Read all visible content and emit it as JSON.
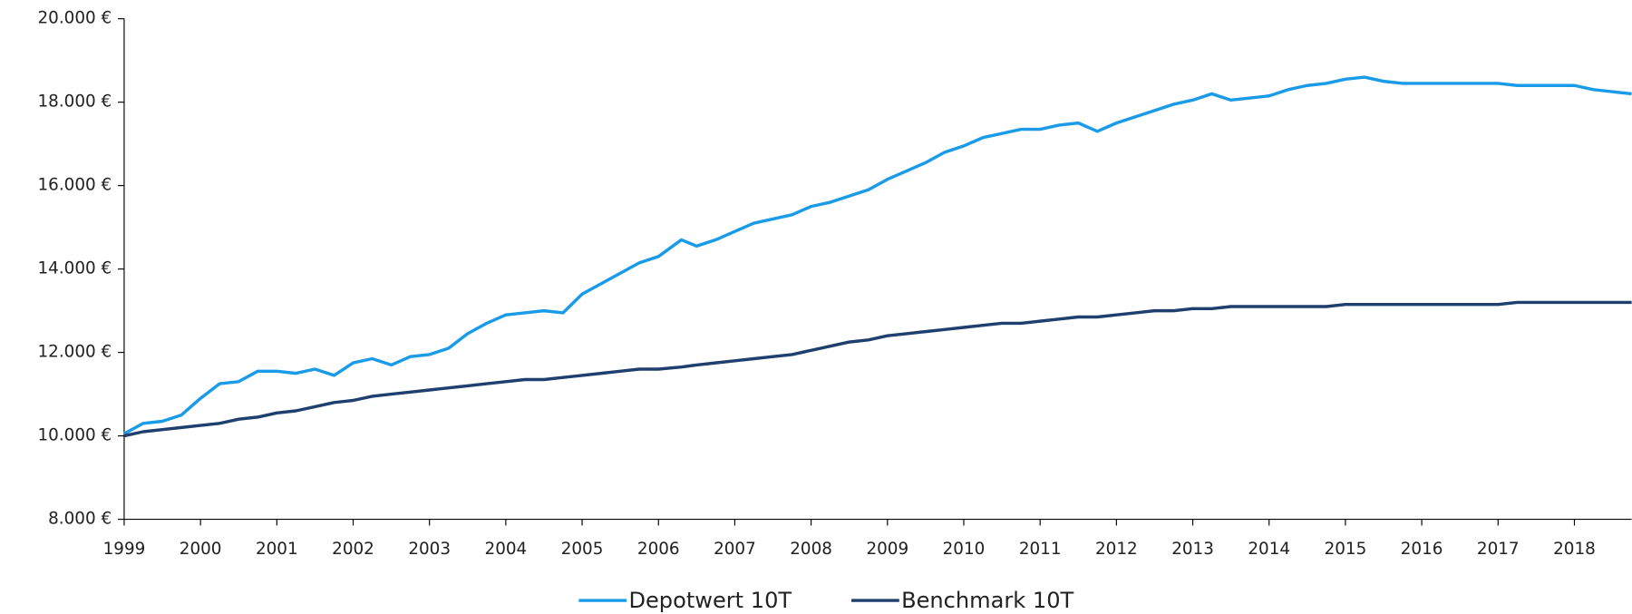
{
  "chart_data": {
    "type": "line",
    "x": [
      1999,
      1999.25,
      1999.5,
      1999.75,
      2000,
      2000.25,
      2000.5,
      2000.75,
      2001,
      2001.25,
      2001.5,
      2001.75,
      2002,
      2002.25,
      2002.5,
      2002.75,
      2003,
      2003.25,
      2003.5,
      2003.75,
      2004,
      2004.25,
      2004.5,
      2004.75,
      2005,
      2005.25,
      2005.5,
      2005.75,
      2006,
      2006.3,
      2006.5,
      2006.75,
      2007,
      2007.25,
      2007.5,
      2007.75,
      2008,
      2008.25,
      2008.5,
      2008.75,
      2009,
      2009.25,
      2009.5,
      2009.75,
      2010,
      2010.25,
      2010.5,
      2010.75,
      2011,
      2011.25,
      2011.5,
      2011.75,
      2012,
      2012.25,
      2012.5,
      2012.75,
      2013,
      2013.25,
      2013.5,
      2013.75,
      2014,
      2014.25,
      2014.5,
      2014.75,
      2015,
      2015.25,
      2015.5,
      2015.75,
      2016,
      2016.25,
      2016.5,
      2017,
      2017.25,
      2018,
      2018.25,
      2018.75
    ],
    "series": [
      {
        "name": "Depotwert 10T",
        "color": "#1a9be8",
        "values": [
          10050,
          10300,
          10350,
          10500,
          10900,
          11250,
          11300,
          11550,
          11550,
          11500,
          11600,
          11450,
          11750,
          11850,
          11700,
          11900,
          11950,
          12100,
          12450,
          12700,
          12900,
          12950,
          13000,
          12950,
          13400,
          13650,
          13900,
          14150,
          14300,
          14700,
          14550,
          14700,
          14900,
          15100,
          15200,
          15300,
          15500,
          15600,
          15750,
          15900,
          16150,
          16350,
          16550,
          16800,
          16950,
          17150,
          17250,
          17350,
          17350,
          17450,
          17500,
          17300,
          17500,
          17650,
          17800,
          17950,
          18050,
          18200,
          18050,
          18100,
          18150,
          18300,
          18400,
          18450,
          18550,
          18600,
          18500,
          18450,
          18450,
          18450,
          18450,
          18450,
          18400,
          18400,
          18300,
          18200
        ]
      },
      {
        "name": "Benchmark 10T",
        "color": "#1f3f6e",
        "values": [
          10000,
          10100,
          10150,
          10200,
          10250,
          10300,
          10400,
          10450,
          10550,
          10600,
          10700,
          10800,
          10850,
          10950,
          11000,
          11050,
          11100,
          11150,
          11200,
          11250,
          11300,
          11350,
          11350,
          11400,
          11450,
          11500,
          11550,
          11600,
          11600,
          11650,
          11700,
          11750,
          11800,
          11850,
          11900,
          11950,
          12050,
          12150,
          12250,
          12300,
          12400,
          12450,
          12500,
          12550,
          12600,
          12650,
          12700,
          12700,
          12750,
          12800,
          12850,
          12850,
          12900,
          12950,
          13000,
          13000,
          13050,
          13050,
          13100,
          13100,
          13100,
          13100,
          13100,
          13100,
          13150,
          13150,
          13150,
          13150,
          13150,
          13150,
          13150,
          13150,
          13200,
          13200,
          13200,
          13200
        ]
      }
    ],
    "xlim": [
      1999,
      2018.75
    ],
    "xticks": [
      1999,
      2000,
      2001,
      2002,
      2003,
      2004,
      2005,
      2006,
      2007,
      2008,
      2009,
      2010,
      2011,
      2012,
      2013,
      2014,
      2015,
      2016,
      2017,
      2018
    ],
    "ylim": [
      8000,
      20000
    ],
    "yticks": [
      {
        "value": 8000,
        "label": "8.000 €"
      },
      {
        "value": 10000,
        "label": "10.000 €"
      },
      {
        "value": 12000,
        "label": "12.000 €"
      },
      {
        "value": 14000,
        "label": "14.000 €"
      },
      {
        "value": 16000,
        "label": "16.000 €"
      },
      {
        "value": 18000,
        "label": "18.000 €"
      },
      {
        "value": 20000,
        "label": "20.000 €"
      }
    ],
    "legend": "bottom"
  }
}
